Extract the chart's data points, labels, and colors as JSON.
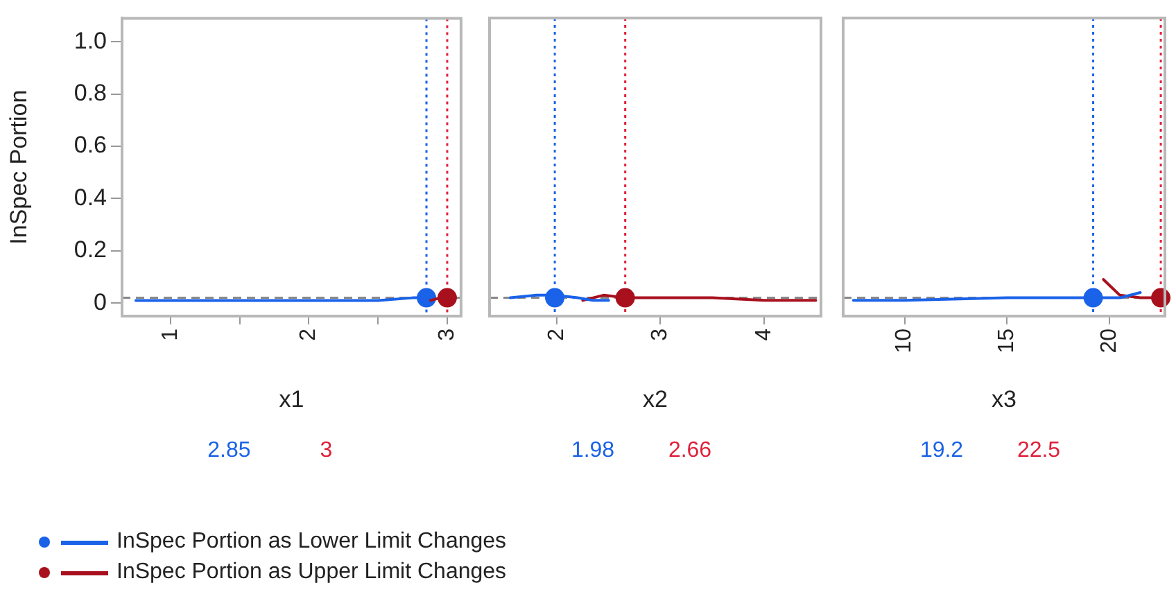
{
  "chart_data": [
    {
      "type": "line",
      "xlabel": "x1",
      "ylabel": "InSpec Portion",
      "xlim": [
        0.65,
        3.1
      ],
      "xticks": [
        1,
        {
          "value": 1.5,
          "label": null
        },
        2,
        {
          "value": 2.5,
          "label": null
        },
        3
      ],
      "ylim": [
        -0.05,
        1.09
      ],
      "yticks": [
        0,
        0.2,
        0.4,
        0.6,
        0.8,
        {
          "value": 1,
          "label": "1.0"
        }
      ],
      "grid": false,
      "legend": "bottom",
      "line_style": "solid",
      "series": [
        {
          "name": "InSpec Portion as Lower Limit Changes",
          "color": "#1a62e8",
          "x": [
            0.75,
            1,
            1.5,
            2,
            2.5,
            2.75,
            2.85
          ],
          "values": [
            0.01,
            0.01,
            0.01,
            0.01,
            0.01,
            0.02,
            0.02
          ]
        },
        {
          "name": "InSpec Portion as Upper Limit Changes",
          "color": "#a8101e",
          "x": [
            2.88,
            2.95,
            3
          ],
          "values": [
            0.01,
            0.02,
            0.02
          ]
        },
        {
          "type": "scatter",
          "marker": "circle",
          "color": "#1a62e8",
          "x": [
            2.85
          ],
          "values": [
            0.02
          ]
        },
        {
          "type": "scatter",
          "marker": "circle",
          "color": "#a8101e",
          "x": [
            3
          ],
          "values": [
            0.02
          ]
        }
      ],
      "ref_lines": [
        {
          "axis": "y",
          "value": 0.02,
          "color": "#888888",
          "line_style": "dashed"
        },
        {
          "axis": "x",
          "value": 2.85,
          "label": "2.85",
          "color": "#1a62e8",
          "line_style": "dotted"
        },
        {
          "axis": "x",
          "value": 3,
          "label": "3",
          "color": "#e0203a",
          "line_style": "dotted"
        }
      ]
    },
    {
      "type": "line",
      "xlabel": "x2",
      "xlim": [
        1.35,
        4.55
      ],
      "xticks": [
        2,
        3,
        4
      ],
      "ylim": [
        -0.05,
        1.09
      ],
      "tick_labels": "x",
      "grid": false,
      "line_style": "solid",
      "series": [
        {
          "color": "#1a62e8",
          "x": [
            1.55,
            1.8,
            1.98,
            2.2,
            2.35,
            2.5
          ],
          "values": [
            0.02,
            0.03,
            0.03,
            0.02,
            0.01,
            0.01
          ]
        },
        {
          "color": "#a8101e",
          "x": [
            2.25,
            2.45,
            2.66,
            3,
            3.5,
            4,
            4.5
          ],
          "values": [
            0.01,
            0.03,
            0.02,
            0.02,
            0.02,
            0.01,
            0.01
          ]
        },
        {
          "type": "scatter",
          "marker": "circle",
          "color": "#1a62e8",
          "x": [
            1.98
          ],
          "values": [
            0.02
          ]
        },
        {
          "type": "scatter",
          "marker": "circle",
          "color": "#a8101e",
          "x": [
            2.66
          ],
          "values": [
            0.02
          ]
        }
      ],
      "ref_lines": [
        {
          "axis": "y",
          "value": 0.02,
          "color": "#888888",
          "line_style": "dashed"
        },
        {
          "axis": "x",
          "value": 1.98,
          "label": "1.98",
          "color": "#1a62e8",
          "line_style": "dotted"
        },
        {
          "axis": "x",
          "value": 2.66,
          "label": "2.66",
          "color": "#e0203a",
          "line_style": "dotted"
        }
      ]
    },
    {
      "type": "line",
      "xlabel": "x3",
      "xlim": [
        7,
        22.7
      ],
      "xticks": [
        10,
        15,
        20
      ],
      "ylim": [
        -0.05,
        1.09
      ],
      "tick_labels": "x",
      "grid": false,
      "line_style": "solid",
      "series": [
        {
          "color": "#1a62e8",
          "x": [
            7.5,
            10,
            15,
            18.5,
            19.2,
            20.5,
            21.5
          ],
          "values": [
            0.01,
            0.01,
            0.02,
            0.02,
            0.02,
            0.02,
            0.04
          ]
        },
        {
          "color": "#a8101e",
          "x": [
            19.7,
            20.5,
            21.5,
            22.5
          ],
          "values": [
            0.09,
            0.03,
            0.02,
            0.02
          ]
        },
        {
          "type": "scatter",
          "marker": "circle",
          "color": "#1a62e8",
          "x": [
            19.2
          ],
          "values": [
            0.02
          ]
        },
        {
          "type": "scatter",
          "marker": "circle",
          "color": "#a8101e",
          "x": [
            22.5
          ],
          "values": [
            0.02
          ]
        }
      ],
      "ref_lines": [
        {
          "axis": "y",
          "value": 0.02,
          "color": "#888888",
          "line_style": "dashed"
        },
        {
          "axis": "x",
          "value": 19.2,
          "label": "19.2",
          "color": "#1a62e8",
          "line_style": "dotted"
        },
        {
          "axis": "x",
          "value": 22.5,
          "label": "22.5",
          "color": "#e0203a",
          "line_style": "dotted"
        }
      ]
    }
  ]
}
